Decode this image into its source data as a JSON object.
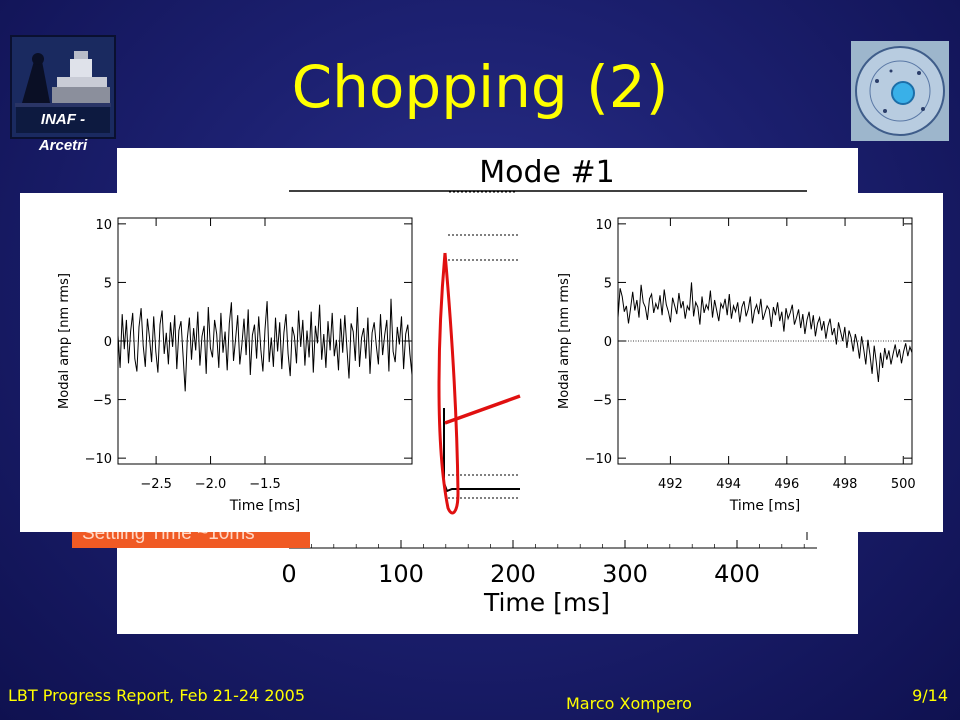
{
  "slide": {
    "title": "Chopping (2)",
    "logo_left_text": "INAF - Arcetri",
    "settling_label": "Settling Time ~10ms"
  },
  "footer": {
    "left": "LBT Progress Report, Feb 21-24 2005",
    "center": "Marco Xompero",
    "right": "9/14"
  },
  "chart_data": [
    {
      "type": "line",
      "title": "Mode #1",
      "xlabel": "Time [ms]",
      "x_ticks": [
        0,
        100,
        200,
        300,
        400
      ],
      "description_series": [
        {
          "x": [
            130,
            135,
            140,
            150,
            180,
            250,
            450
          ],
          "y": [
            1.0,
            -0.2,
            -0.95,
            -1.0,
            -1.0,
            -1.0,
            -1.0
          ]
        }
      ]
    },
    {
      "type": "line",
      "xlabel": "Time [ms]",
      "ylabel": "Modal amp [nm rms]",
      "xlim": [
        -2.85,
        -0.15
      ],
      "ylim": [
        -10.5,
        10.5
      ],
      "x_ticks": [
        -2.5,
        -2.0,
        -1.5
      ],
      "y_ticks": [
        10,
        5,
        0,
        -5,
        -10
      ],
      "series": [
        {
          "values": [
            0.5,
            -2.3,
            2.3,
            -0.7,
            1.8,
            -1.9,
            0.8,
            2.4,
            -1.5,
            -2.6,
            1.2,
            2.8,
            -0.4,
            -2.2,
            1.9,
            0.3,
            -1.8,
            2.1,
            -0.9,
            -2.7,
            1.4,
            2.6,
            -1.1,
            0.7,
            -2.0,
            1.6,
            -0.5,
            2.2,
            -2.4,
            0.9,
            1.7,
            -1.3,
            -4.3,
            0.2,
            2.0,
            -1.6,
            1.1,
            -0.8,
            2.5,
            -2.1,
            0.4,
            1.3,
            -2.8,
            2.9,
            -0.6,
            -1.4,
            1.8,
            0.6,
            -2.3,
            2.4,
            -1.0,
            0.8,
            -2.5,
            1.5,
            3.3,
            -1.7,
            0.2,
            2.2,
            -2.0,
            -0.3,
            1.9,
            -1.2,
            2.7,
            -2.9,
            0.5,
            1.4,
            -1.5,
            2.1,
            -0.7,
            -2.6,
            1.0,
            3.4,
            -1.8,
            0.3,
            -2.2,
            2.0,
            -0.9,
            1.6,
            -2.4,
            0.7,
            2.3,
            -1.1,
            -3.0,
            1.2,
            0.4,
            -1.9,
            2.6,
            -0.5,
            1.8,
            -2.1,
            0.9,
            -1.4,
            2.5,
            -2.7,
            1.3,
            -0.2,
            3.1,
            -1.6,
            0.6,
            -2.3,
            1.7,
            -0.8,
            2.4,
            -1.3,
            0.1,
            -2.5,
            1.9,
            -1.0,
            2.2,
            -0.6,
            -3.2,
            1.5,
            0.8,
            -1.7,
            2.9,
            -2.2,
            0.3,
            1.1,
            -1.5,
            2.0,
            -2.8,
            0.7,
            1.6,
            -0.4,
            -2.0,
            2.3,
            -1.2,
            0.5,
            1.8,
            -2.6,
            3.6,
            -0.9,
            -1.8,
            1.2,
            -0.3,
            2.1,
            -2.4,
            0.6,
            1.4,
            -1.1,
            -2.9
          ]
        }
      ]
    },
    {
      "type": "line",
      "xlabel": "Time [ms]",
      "ylabel": "Modal amp [nm rms]",
      "xlim": [
        490.2,
        500.3
      ],
      "ylim": [
        -10.5,
        10.5
      ],
      "x_ticks": [
        492,
        494,
        496,
        498,
        500
      ],
      "y_ticks": [
        10,
        5,
        0,
        -5,
        -10
      ],
      "series": [
        {
          "values": [
            2.0,
            4.5,
            3.8,
            2.5,
            3.0,
            1.5,
            2.8,
            4.2,
            2.6,
            3.5,
            2.0,
            4.8,
            3.3,
            2.9,
            1.8,
            3.6,
            4.0,
            2.4,
            3.2,
            2.7,
            3.9,
            2.2,
            4.4,
            3.1,
            2.5,
            1.6,
            3.7,
            3.0,
            2.3,
            4.1,
            2.8,
            3.4,
            1.9,
            3.0,
            2.6,
            5.0,
            2.1,
            3.3,
            2.9,
            1.4,
            3.8,
            2.4,
            3.1,
            2.7,
            4.3,
            2.0,
            3.5,
            2.6,
            1.7,
            3.2,
            2.8,
            3.6,
            2.2,
            4.0,
            1.9,
            3.0,
            2.5,
            3.3,
            1.6,
            2.9,
            3.4,
            2.1,
            2.7,
            3.8,
            1.5,
            2.6,
            3.1,
            2.3,
            3.6,
            1.8,
            2.4,
            3.0,
            2.7,
            1.2,
            2.9,
            2.2,
            3.3,
            1.7,
            2.5,
            0.8,
            2.8,
            1.9,
            2.4,
            3.1,
            1.4,
            2.0,
            2.7,
            1.1,
            2.3,
            0.6,
            1.8,
            2.5,
            1.0,
            2.2,
            0.4,
            1.5,
            2.0,
            0.9,
            1.7,
            0.2,
            1.3,
            1.9,
            0.5,
            1.1,
            -0.3,
            1.6,
            0.8,
            0.0,
            1.2,
            -0.6,
            0.9,
            0.3,
            -0.9,
            0.6,
            -0.2,
            -1.5,
            0.4,
            -0.7,
            -2.0,
            0.1,
            -1.2,
            -2.8,
            -0.4,
            -1.8,
            -3.5,
            -1.0,
            -2.3,
            -0.6,
            -1.6,
            -0.8,
            -2.0,
            -1.1,
            -0.3,
            -1.4,
            -0.7,
            -1.9,
            -0.9,
            -0.2,
            -1.3,
            -0.5,
            -1.0
          ]
        }
      ]
    }
  ]
}
